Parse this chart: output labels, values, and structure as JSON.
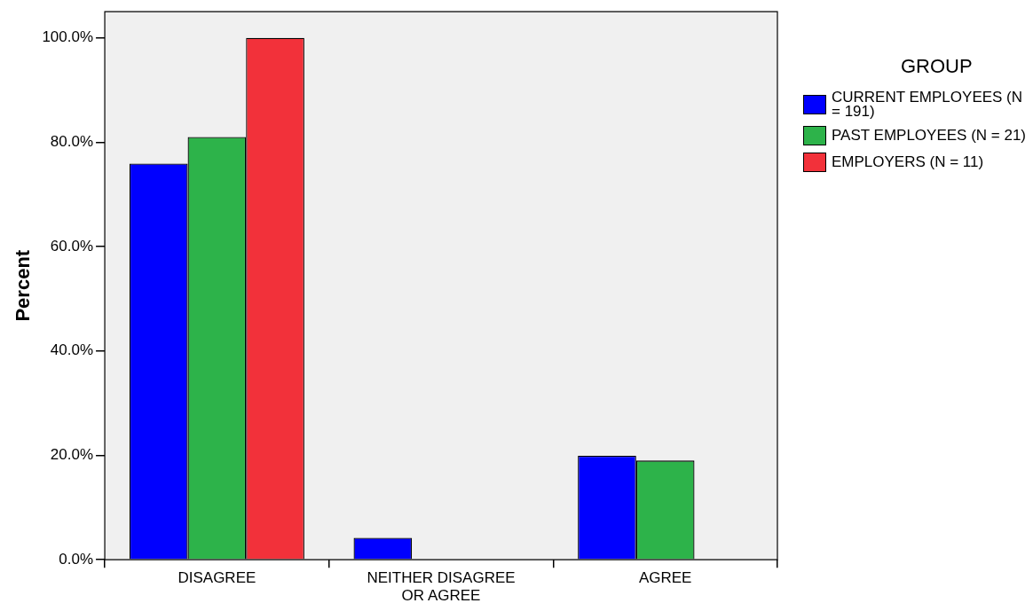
{
  "chart_data": {
    "type": "bar",
    "ylabel": "Percent",
    "legend_title": "GROUP",
    "legend": "right",
    "grid": false,
    "categories": [
      "DISAGREE",
      "NEITHER DISAGREE OR AGREE",
      "AGREE"
    ],
    "ylim": [
      0,
      105
    ],
    "yticks": [
      {
        "value": 0,
        "label": "0.0%"
      },
      {
        "value": 20,
        "label": "20.0%"
      },
      {
        "value": 40,
        "label": "40.0%"
      },
      {
        "value": 60,
        "label": "60.0%"
      },
      {
        "value": 80,
        "label": "80.0%"
      },
      {
        "value": 100,
        "label": "100.0%"
      }
    ],
    "series": [
      {
        "name": "CURRENT EMPLOYEES (N = 191)",
        "color": "#0000ff",
        "values": [
          75.9,
          4.2,
          19.9
        ]
      },
      {
        "name": "PAST EMPLOYEES (N = 21)",
        "color": "#2db34a",
        "values": [
          81.0,
          0,
          19.0
        ]
      },
      {
        "name": "EMPLOYERS (N = 11)",
        "color": "#f2313a",
        "values": [
          100,
          0,
          0
        ]
      }
    ]
  }
}
